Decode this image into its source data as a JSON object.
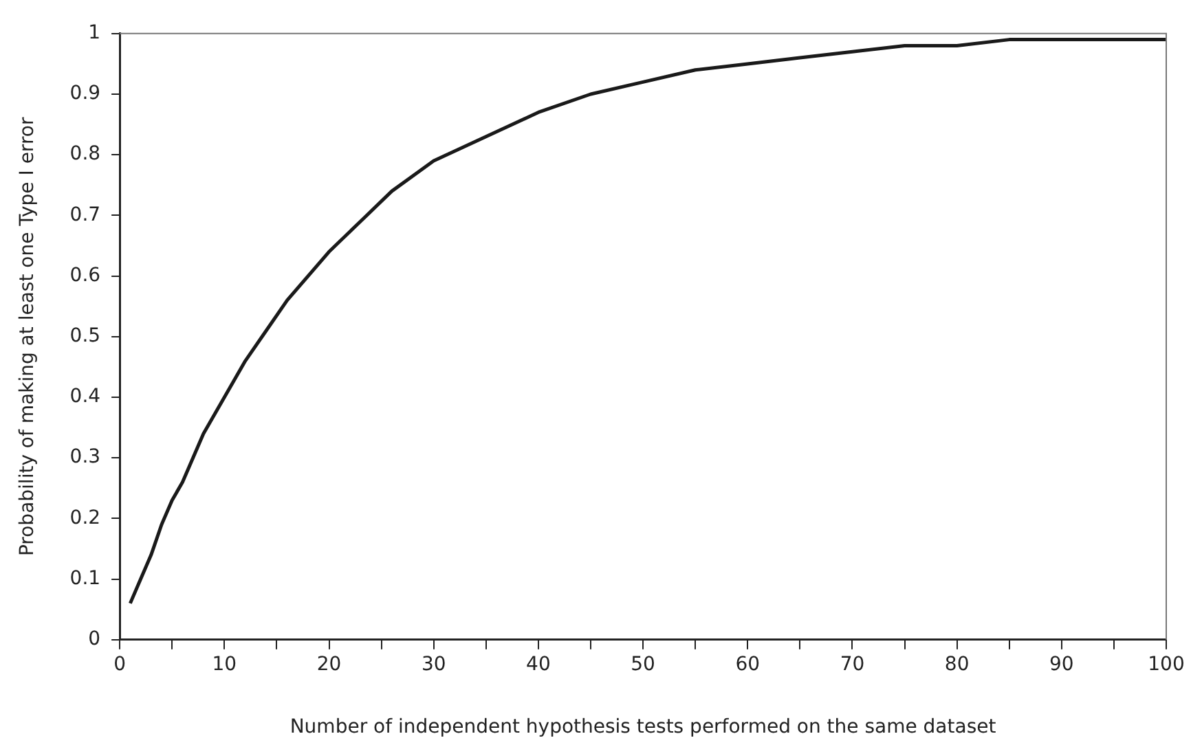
{
  "chart_data": {
    "type": "line",
    "xlabel": "Number of independent hypothesis tests performed on the same dataset",
    "ylabel": "Probability of making at least one Type I error",
    "x": [
      1,
      2,
      3,
      4,
      5,
      6,
      8,
      10,
      12,
      14,
      16,
      18,
      20,
      23,
      26,
      30,
      35,
      40,
      45,
      50,
      55,
      60,
      65,
      70,
      75,
      80,
      85,
      90,
      95,
      100
    ],
    "series": [
      {
        "color": "#1a1a1a",
        "values": [
          0.06,
          0.1,
          0.14,
          0.19,
          0.23,
          0.26,
          0.34,
          0.4,
          0.46,
          0.51,
          0.56,
          0.6,
          0.64,
          0.69,
          0.74,
          0.79,
          0.83,
          0.87,
          0.9,
          0.92,
          0.94,
          0.95,
          0.96,
          0.97,
          0.98,
          0.98,
          0.99,
          0.99,
          0.99,
          0.99
        ]
      }
    ],
    "xlim": [
      0,
      100
    ],
    "xticks": [
      0,
      {
        "value": 5,
        "label": null
      },
      10,
      {
        "value": 15,
        "label": null
      },
      20,
      {
        "value": 25,
        "label": null
      },
      30,
      {
        "value": 35,
        "label": null
      },
      40,
      {
        "value": 45,
        "label": null
      },
      50,
      {
        "value": 55,
        "label": null
      },
      60,
      {
        "value": 65,
        "label": null
      },
      70,
      {
        "value": 75,
        "label": null
      },
      80,
      {
        "value": 85,
        "label": null
      },
      90,
      {
        "value": 95,
        "label": null
      },
      100
    ],
    "ylim": [
      0,
      1
    ],
    "yticks": [
      0,
      0.1,
      0.2,
      0.3,
      0.4,
      0.5,
      0.6,
      0.7,
      0.8,
      0.9,
      1
    ],
    "grid": false,
    "legend": false,
    "marker": "none",
    "line_style": "solid"
  }
}
